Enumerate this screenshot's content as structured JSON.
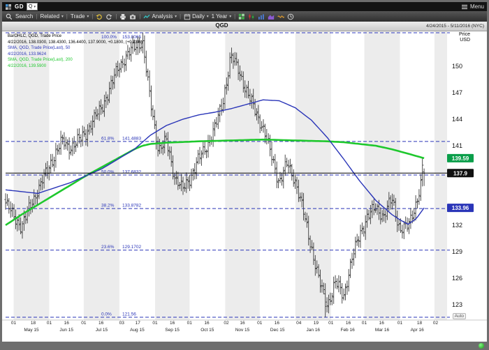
{
  "window": {
    "symbol": "GD",
    "quick_box": "Q",
    "menu_label": "Menu"
  },
  "icons": {
    "caret_down": "▾",
    "separator": "|"
  },
  "toolbar": {
    "search_label": "Search",
    "related_label": "Related",
    "trade_label": "Trade",
    "analysis_label": "Analysis",
    "period_label": "Daily",
    "range_label": "1 Year"
  },
  "tab": {
    "title": "QGD",
    "date_range": "4/24/2015 - 5/11/2016 (NYC)"
  },
  "axis_header": {
    "line1": "Price",
    "line2": "USD"
  },
  "auto_label": "Auto",
  "legend": [
    {
      "text": "BarOHLC, QGD, Trade Price",
      "color": "#000000"
    },
    {
      "text": "4/22/2016, 138.0300, 138.4300, 136.4400, 137.9000, +0.1800, (+0.13%)",
      "color": "#000000"
    },
    {
      "text": "SMA, QGD, Trade Price(Last), 50",
      "color": "#2a35b8"
    },
    {
      "text": "4/22/2016, 133.9624",
      "color": "#2a35b8"
    },
    {
      "text": "SMA, QGD, Trade Price(Last), 200",
      "color": "#1ec82d"
    },
    {
      "text": "4/22/2016, 139.5900",
      "color": "#1ec82d"
    }
  ],
  "chart_data": {
    "type": "bar",
    "subtype": "daily-ohlc-with-sma-and-fibonacci",
    "title": "QGD",
    "start_date": "4/24/2015",
    "end_date": "5/11/2016",
    "x_domain_days": [
      0,
      384
    ],
    "ylim": [
      121.56,
      153.8065
    ],
    "y_ticks": [
      150,
      147,
      144,
      141,
      132,
      129,
      126,
      123
    ],
    "last_trade": {
      "date": "4/22/2016",
      "open": 138.03,
      "high": 138.43,
      "low": 136.44,
      "close": 137.9,
      "change": "+0.1800",
      "change_pct": "(+0.13%)"
    },
    "fib_levels": [
      {
        "pct": "100.0%",
        "value": "153.8065",
        "p": 153.8065
      },
      {
        "pct": "61.8%",
        "value": "141.4883",
        "p": 141.4883
      },
      {
        "pct": "50.0%",
        "value": "137.6832",
        "p": 137.6832
      },
      {
        "pct": "38.2%",
        "value": "133.8782",
        "p": 133.8782
      },
      {
        "pct": "23.6%",
        "value": "129.1702",
        "p": 129.1702
      },
      {
        "pct": "0.0%",
        "value": "121.56",
        "p": 121.56
      }
    ],
    "badges": [
      {
        "text": "139.59",
        "p": 139.59,
        "color": "#0a9e4a"
      },
      {
        "text": "137.9",
        "p": 137.9,
        "color": "#111111"
      },
      {
        "text": "133.96",
        "p": 133.96,
        "color": "#2a35b8"
      }
    ],
    "months": [
      {
        "label": "",
        "d0": 0,
        "d1": 7,
        "shade": false
      },
      {
        "label": "May 15",
        "d0": 7,
        "d1": 38,
        "shade": true
      },
      {
        "label": "Jun 15",
        "d0": 38,
        "d1": 68,
        "shade": false
      },
      {
        "label": "Jul 15",
        "d0": 68,
        "d1": 99,
        "shade": true
      },
      {
        "label": "Aug 15",
        "d0": 99,
        "d1": 130,
        "shade": false
      },
      {
        "label": "Sep 15",
        "d0": 130,
        "d1": 160,
        "shade": true
      },
      {
        "label": "Oct 15",
        "d0": 160,
        "d1": 191,
        "shade": false
      },
      {
        "label": "Nov 15",
        "d0": 191,
        "d1": 221,
        "shade": true
      },
      {
        "label": "Dec 15",
        "d0": 221,
        "d1": 252,
        "shade": false
      },
      {
        "label": "Jan 16",
        "d0": 252,
        "d1": 283,
        "shade": true
      },
      {
        "label": "Feb 16",
        "d0": 283,
        "d1": 312,
        "shade": false
      },
      {
        "label": "Mar 16",
        "d0": 312,
        "d1": 343,
        "shade": true
      },
      {
        "label": "Apr 16",
        "d0": 343,
        "d1": 373,
        "shade": false
      },
      {
        "label": "",
        "d0": 373,
        "d1": 384,
        "shade": true
      }
    ],
    "day_ticks": [
      {
        "d": 7,
        "t": "01"
      },
      {
        "d": 24,
        "t": "18"
      },
      {
        "d": 38,
        "t": "01"
      },
      {
        "d": 53,
        "t": "16"
      },
      {
        "d": 68,
        "t": "01"
      },
      {
        "d": 83,
        "t": "16"
      },
      {
        "d": 101,
        "t": "03"
      },
      {
        "d": 115,
        "t": "17"
      },
      {
        "d": 130,
        "t": "01"
      },
      {
        "d": 145,
        "t": "16"
      },
      {
        "d": 160,
        "t": "01"
      },
      {
        "d": 175,
        "t": "16"
      },
      {
        "d": 192,
        "t": "02"
      },
      {
        "d": 206,
        "t": "16"
      },
      {
        "d": 221,
        "t": "01"
      },
      {
        "d": 236,
        "t": "16"
      },
      {
        "d": 255,
        "t": "04"
      },
      {
        "d": 270,
        "t": "19"
      },
      {
        "d": 283,
        "t": "01"
      },
      {
        "d": 298,
        "t": "16"
      },
      {
        "d": 312,
        "t": "01"
      },
      {
        "d": 327,
        "t": "16"
      },
      {
        "d": 343,
        "t": "01"
      },
      {
        "d": 360,
        "t": "18"
      },
      {
        "d": 374,
        "t": "02"
      }
    ],
    "series": [
      {
        "name": "BarOHLC QGD Trade Price",
        "type": "ohlc_bars",
        "color": "#3a3a3a",
        "anchor_interval_days": 7,
        "anchor_closes": [
          134.5,
          133.0,
          131.8,
          134.0,
          136.0,
          137.8,
          139.8,
          141.5,
          140.8,
          141.5,
          142.5,
          144.0,
          145.5,
          147.5,
          150.0,
          151.0,
          152.3,
          152.8,
          146.0,
          140.5,
          141.5,
          137.5,
          136.0,
          137.5,
          139.5,
          141.0,
          143.0,
          146.0,
          151.2,
          149.5,
          147.0,
          145.0,
          143.0,
          140.0,
          136.8,
          139.0,
          137.0,
          133.5,
          129.5,
          125.5,
          123.0,
          125.5,
          124.0,
          128.0,
          131.0,
          133.0,
          134.0,
          133.0,
          135.0,
          131.5,
          131.8,
          134.5,
          137.9
        ]
      },
      {
        "name": "SMA 50",
        "type": "line",
        "color": "#2a35b8",
        "width": 1.4,
        "last": 133.9624,
        "anchors": [
          [
            0,
            136.0
          ],
          [
            4,
            135.6
          ],
          [
            8,
            136.8
          ],
          [
            12,
            138.4
          ],
          [
            16,
            140.6
          ],
          [
            18,
            142.2
          ],
          [
            20,
            143.3
          ],
          [
            22,
            144.0
          ],
          [
            24,
            144.5
          ],
          [
            26,
            144.8
          ],
          [
            28,
            145.2
          ],
          [
            30,
            145.7
          ],
          [
            32,
            146.2
          ],
          [
            34,
            146.1
          ],
          [
            36,
            145.3
          ],
          [
            38,
            143.9
          ],
          [
            40,
            141.9
          ],
          [
            42,
            139.5
          ],
          [
            44,
            137.0
          ],
          [
            46,
            134.8
          ],
          [
            48,
            133.2
          ],
          [
            49,
            132.6
          ],
          [
            50,
            132.1
          ],
          [
            51,
            132.7
          ],
          [
            52,
            133.96
          ]
        ]
      },
      {
        "name": "SMA 200",
        "type": "line",
        "color": "#1ec82d",
        "width": 2.6,
        "last": 139.59,
        "anchors": [
          [
            0,
            132.0
          ],
          [
            2,
            133.2
          ],
          [
            4,
            134.3
          ],
          [
            6,
            135.4
          ],
          [
            8,
            136.5
          ],
          [
            10,
            137.6
          ],
          [
            12,
            138.6
          ],
          [
            14,
            139.6
          ],
          [
            16,
            140.6
          ],
          [
            17,
            141.0
          ],
          [
            18,
            141.2
          ],
          [
            20,
            141.35
          ],
          [
            24,
            141.5
          ],
          [
            28,
            141.6
          ],
          [
            32,
            141.7
          ],
          [
            36,
            141.6
          ],
          [
            40,
            141.5
          ],
          [
            42,
            141.4
          ],
          [
            44,
            141.2
          ],
          [
            46,
            141.0
          ],
          [
            48,
            140.6
          ],
          [
            50,
            140.1
          ],
          [
            52,
            139.59
          ]
        ]
      }
    ],
    "colors": {
      "band": "#ececec",
      "fib": "#2a35b8",
      "last_price_line": "#000000"
    }
  }
}
